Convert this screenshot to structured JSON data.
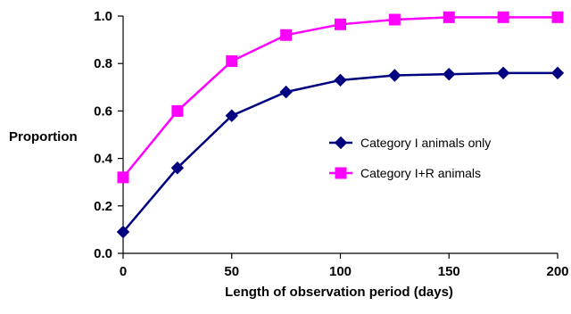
{
  "chart_data": {
    "type": "line",
    "title": "",
    "xlabel": "Length of observation period (days)",
    "ylabel": "Proportion",
    "x": [
      0,
      25,
      50,
      75,
      100,
      125,
      150,
      175,
      200
    ],
    "xlim": [
      0,
      200
    ],
    "ylim": [
      0.0,
      1.0
    ],
    "xticks": [
      "0",
      "50",
      "100",
      "150",
      "200"
    ],
    "yticks": [
      "0.0",
      "0.2",
      "0.4",
      "0.6",
      "0.8",
      "1.0"
    ],
    "grid": false,
    "legend_position": "center-right",
    "series": [
      {
        "name": "Category I animals only",
        "color": "#000080",
        "marker": "diamond",
        "values": [
          0.09,
          0.36,
          0.58,
          0.68,
          0.73,
          0.75,
          0.755,
          0.76,
          0.76
        ]
      },
      {
        "name": "Category I+R animals",
        "color": "#ff00ff",
        "marker": "square",
        "values": [
          0.32,
          0.6,
          0.81,
          0.92,
          0.965,
          0.985,
          0.995,
          0.995,
          0.995
        ]
      }
    ]
  }
}
